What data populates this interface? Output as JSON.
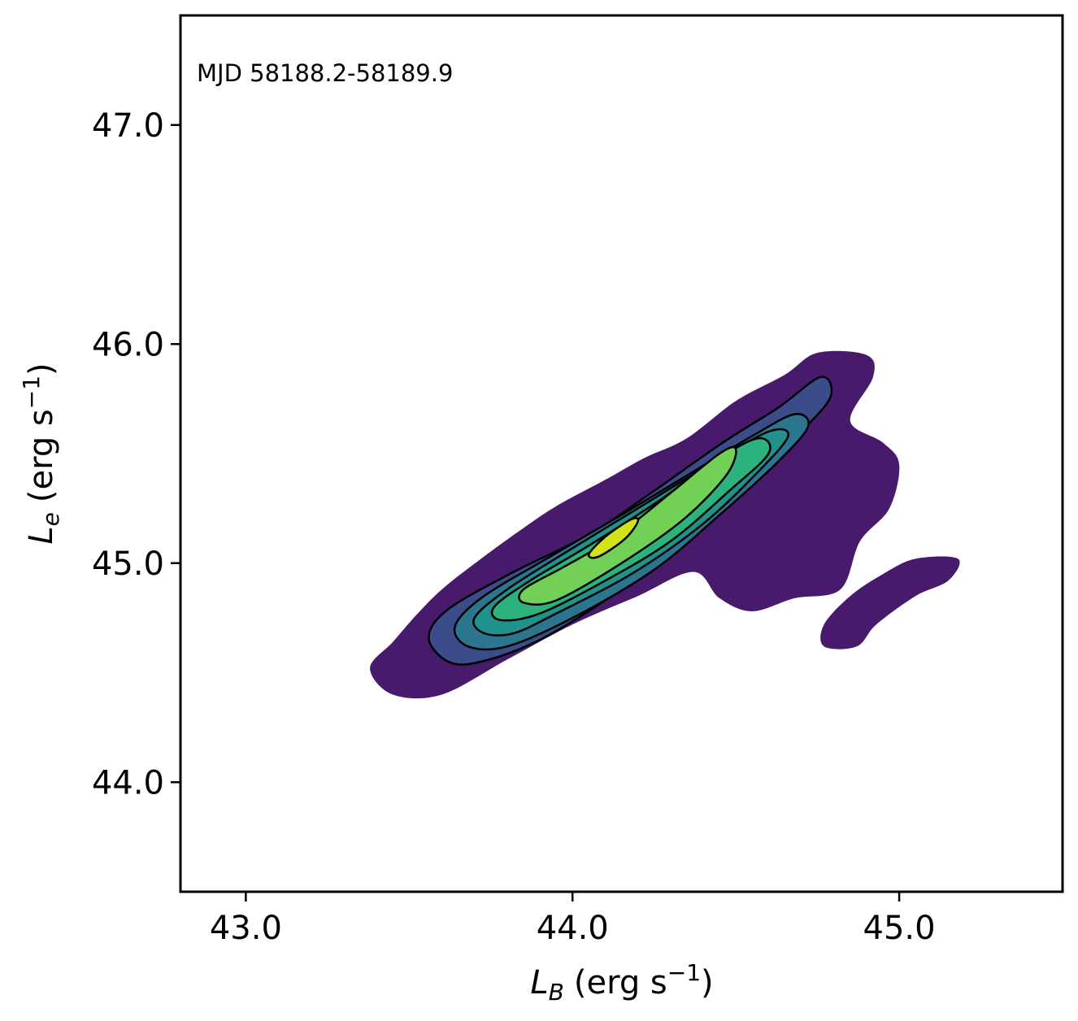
{
  "chart_data": {
    "type": "contour",
    "annotation": "MJD 58188.2-58189.9",
    "xlabel": {
      "symbol": "L",
      "sub": "B",
      "units_pre": "(erg s",
      "exp": "−1",
      "units_post": ")"
    },
    "ylabel": {
      "symbol": "L",
      "sub": "e",
      "units_pre": "(erg s",
      "exp": "−1",
      "units_post": ")"
    },
    "xlim": [
      42.8,
      45.5
    ],
    "ylim": [
      43.5,
      47.5
    ],
    "xticks": [
      43.0,
      44.0,
      45.0
    ],
    "xtick_labels": [
      "43.0",
      "44.0",
      "45.0"
    ],
    "yticks": [
      44.0,
      45.0,
      46.0,
      47.0
    ],
    "ytick_labels": [
      "44.0",
      "45.0",
      "46.0",
      "47.0"
    ],
    "colormap": [
      "#481a6c",
      "#3b4c8a",
      "#2b758e",
      "#21918c",
      "#2db27d",
      "#73d056",
      "#d2e21b"
    ],
    "contour_lines_color": "#000000",
    "outer_regions": [
      [
        [
          43.38,
          44.52
        ],
        [
          43.45,
          44.64
        ],
        [
          43.52,
          44.76
        ],
        [
          43.6,
          44.88
        ],
        [
          43.72,
          45.02
        ],
        [
          43.85,
          45.16
        ],
        [
          43.95,
          45.26
        ],
        [
          44.1,
          45.38
        ],
        [
          44.22,
          45.48
        ],
        [
          44.35,
          45.57
        ],
        [
          44.5,
          45.74
        ],
        [
          44.65,
          45.86
        ],
        [
          44.75,
          45.96
        ],
        [
          44.9,
          45.95
        ],
        [
          44.92,
          45.85
        ],
        [
          44.85,
          45.65
        ],
        [
          44.95,
          45.55
        ],
        [
          45.0,
          45.45
        ],
        [
          44.97,
          45.25
        ],
        [
          44.88,
          45.1
        ],
        [
          44.82,
          44.88
        ],
        [
          44.68,
          44.84
        ],
        [
          44.55,
          44.78
        ],
        [
          44.45,
          44.84
        ],
        [
          44.37,
          44.96
        ],
        [
          44.2,
          44.85
        ],
        [
          44.0,
          44.72
        ],
        [
          43.8,
          44.56
        ],
        [
          43.6,
          44.4
        ],
        [
          43.45,
          44.4
        ]
      ],
      [
        [
          44.77,
          44.72
        ],
        [
          44.85,
          44.85
        ],
        [
          44.95,
          44.95
        ],
        [
          45.05,
          45.02
        ],
        [
          45.18,
          45.02
        ],
        [
          45.15,
          44.92
        ],
        [
          45.05,
          44.85
        ],
        [
          44.93,
          44.72
        ],
        [
          44.87,
          44.62
        ],
        [
          44.77,
          44.62
        ]
      ]
    ],
    "contour_levels": [
      {
        "fill": "#3b4c8a",
        "points": [
          [
            43.62,
            44.55
          ],
          [
            43.56,
            44.66
          ],
          [
            43.62,
            44.79
          ],
          [
            43.82,
            44.96
          ],
          [
            44.05,
            45.13
          ],
          [
            44.24,
            45.32
          ],
          [
            44.46,
            45.55
          ],
          [
            44.63,
            45.71
          ],
          [
            44.76,
            45.85
          ],
          [
            44.79,
            45.76
          ],
          [
            44.7,
            45.6
          ],
          [
            44.55,
            45.38
          ],
          [
            44.35,
            45.1
          ],
          [
            44.12,
            44.85
          ],
          [
            43.9,
            44.65
          ],
          [
            43.72,
            44.55
          ]
        ]
      },
      {
        "fill": "#2b758e",
        "points": [
          [
            43.68,
            44.62
          ],
          [
            43.64,
            44.71
          ],
          [
            43.72,
            44.84
          ],
          [
            43.92,
            45.02
          ],
          [
            44.15,
            45.22
          ],
          [
            44.35,
            45.4
          ],
          [
            44.55,
            45.58
          ],
          [
            44.68,
            45.68
          ],
          [
            44.72,
            45.62
          ],
          [
            44.62,
            45.45
          ],
          [
            44.45,
            45.22
          ],
          [
            44.25,
            44.97
          ],
          [
            44.0,
            44.75
          ],
          [
            43.8,
            44.62
          ]
        ]
      },
      {
        "fill": "#21918c",
        "points": [
          [
            43.73,
            44.68
          ],
          [
            43.7,
            44.75
          ],
          [
            43.8,
            44.88
          ],
          [
            43.98,
            45.05
          ],
          [
            44.2,
            45.25
          ],
          [
            44.42,
            45.45
          ],
          [
            44.6,
            45.6
          ],
          [
            44.66,
            45.58
          ],
          [
            44.57,
            45.42
          ],
          [
            44.4,
            45.18
          ],
          [
            44.18,
            44.95
          ],
          [
            43.95,
            44.77
          ],
          [
            43.82,
            44.68
          ]
        ]
      },
      {
        "fill": "#2db27d",
        "points": [
          [
            43.78,
            44.74
          ],
          [
            43.76,
            44.8
          ],
          [
            43.87,
            44.92
          ],
          [
            44.05,
            45.08
          ],
          [
            44.26,
            45.28
          ],
          [
            44.45,
            45.48
          ],
          [
            44.57,
            45.57
          ],
          [
            44.6,
            45.5
          ],
          [
            44.48,
            45.33
          ],
          [
            44.3,
            45.1
          ],
          [
            44.1,
            44.92
          ],
          [
            43.9,
            44.77
          ]
        ]
      },
      {
        "fill": "#73d056",
        "points": [
          [
            43.85,
            44.82
          ],
          [
            43.85,
            44.88
          ],
          [
            43.97,
            44.98
          ],
          [
            44.13,
            45.12
          ],
          [
            44.3,
            45.32
          ],
          [
            44.45,
            45.5
          ],
          [
            44.5,
            45.52
          ],
          [
            44.47,
            45.4
          ],
          [
            44.34,
            45.2
          ],
          [
            44.15,
            45.0
          ],
          [
            43.95,
            44.83
          ]
        ]
      },
      {
        "fill": "#d2e21b",
        "points": [
          [
            44.05,
            45.04
          ],
          [
            44.1,
            45.12
          ],
          [
            44.18,
            45.2
          ],
          [
            44.2,
            45.19
          ],
          [
            44.16,
            45.11
          ],
          [
            44.08,
            45.03
          ]
        ]
      }
    ]
  }
}
